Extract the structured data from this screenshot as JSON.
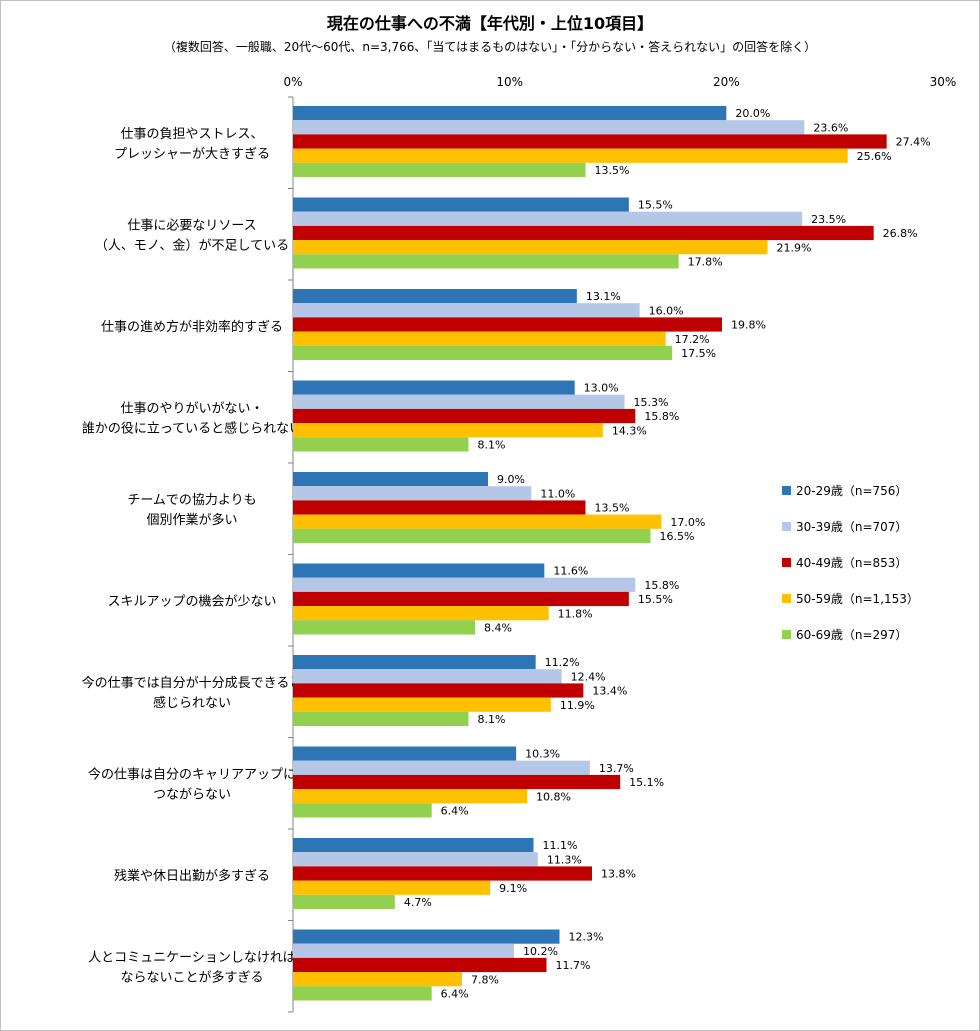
{
  "chart_data": {
    "type": "bar",
    "orientation": "horizontal",
    "title": "現在の仕事への不満【年代別・上位10項目】",
    "subtitle": "（複数回答、一般職、20代～60代、n=3,766、「当てはまるものはない」・「分からない・答えられない」の回答を除く）",
    "xlim": [
      0,
      30
    ],
    "xticks": [
      "0%",
      "10%",
      "20%",
      "30%"
    ],
    "grid": false,
    "legend_position": "right",
    "categories": [
      [
        "仕事の負担やストレス、",
        "プレッシャーが大きすぎる"
      ],
      [
        "仕事に必要なリソース",
        "（人、モノ、金）が不足している"
      ],
      [
        "仕事の進め方が非効率的すぎる"
      ],
      [
        "仕事のやりがいがない・",
        "誰かの役に立っていると感じられない"
      ],
      [
        "チームでの協力よりも",
        "個別作業が多い"
      ],
      [
        "スキルアップの機会が少ない"
      ],
      [
        "今の仕事では自分が十分成長できると",
        "感じられない"
      ],
      [
        "今の仕事は自分のキャリアアップに",
        "つながらない"
      ],
      [
        "残業や休日出勤が多すぎる"
      ],
      [
        "人とコミュニケーションしなければ",
        "ならないことが多すぎる"
      ]
    ],
    "series": [
      {
        "name": "20-29歳（n=756）",
        "color": "#2e75b6",
        "values": [
          20.0,
          15.5,
          13.1,
          13.0,
          9.0,
          11.6,
          11.2,
          10.3,
          11.1,
          12.3
        ]
      },
      {
        "name": "30-39歳（n=707）",
        "color": "#b4c7e7",
        "values": [
          23.6,
          23.5,
          16.0,
          15.3,
          11.0,
          15.8,
          12.4,
          13.7,
          11.3,
          10.2
        ]
      },
      {
        "name": "40-49歳（n=853）",
        "color": "#c00000",
        "values": [
          27.4,
          26.8,
          19.8,
          15.8,
          13.5,
          15.5,
          13.4,
          15.1,
          13.8,
          11.7
        ]
      },
      {
        "name": "50-59歳（n=1,153）",
        "color": "#ffc000",
        "values": [
          25.6,
          21.9,
          17.2,
          14.3,
          17.0,
          11.8,
          11.9,
          10.8,
          9.1,
          7.8
        ]
      },
      {
        "name": "60-69歳（n=297）",
        "color": "#92d050",
        "values": [
          13.5,
          17.8,
          17.5,
          8.1,
          16.5,
          8.4,
          8.1,
          6.4,
          4.7,
          6.4
        ]
      }
    ]
  }
}
